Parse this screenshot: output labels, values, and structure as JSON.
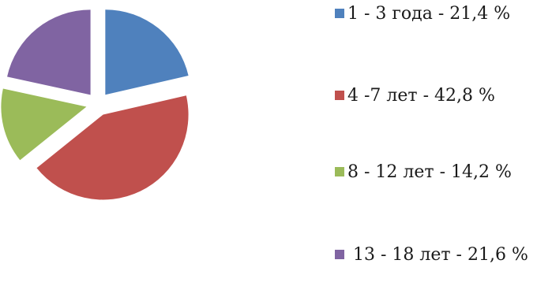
{
  "chart_data": {
    "type": "pie",
    "title": "",
    "exploded": true,
    "legend_position": "right",
    "categories": [
      "1 - 3 года",
      "4 -7 лет",
      "8 - 12 лет",
      "13 - 18 лет"
    ],
    "values": [
      21.4,
      42.8,
      14.2,
      21.6
    ],
    "colors": [
      "#4f81bd",
      "#c0504d",
      "#9bbb59",
      "#8064a2"
    ],
    "legend": [
      {
        "text": "1 - 3 года - 21,4 %",
        "color": "#4f81bd"
      },
      {
        "text": "4 -7 лет - 42,8  %",
        "color": "#c0504d"
      },
      {
        "text": "8 - 12 лет - 14,2 %",
        "color": "#9bbb59"
      },
      {
        "text": " 13 - 18 лет - 21,6 %",
        "color": "#8064a2"
      }
    ]
  }
}
